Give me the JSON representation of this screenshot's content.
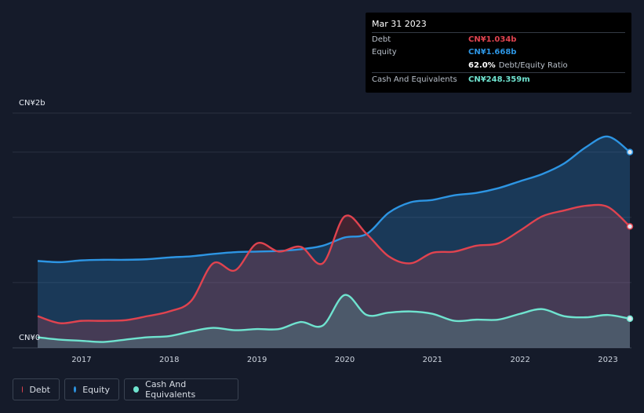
{
  "tooltip": {
    "date": "Mar 31 2023",
    "debt_label": "Debt",
    "debt_value": "CN¥1.034b",
    "equity_label": "Equity",
    "equity_value": "CN¥1.668b",
    "ratio_value": "62.0%",
    "ratio_label": "Debt/Equity Ratio",
    "cash_label": "Cash And Equivalents",
    "cash_value": "CN¥248.359m"
  },
  "colors": {
    "debt": "#e0434f",
    "equity": "#2d95e3",
    "cash": "#6fe3cf",
    "background": "#151b2a"
  },
  "legend": [
    {
      "label": "Debt",
      "color": "#e0434f"
    },
    {
      "label": "Equity",
      "color": "#2d95e3"
    },
    {
      "label": "Cash And Equivalents",
      "color": "#6fe3cf"
    }
  ],
  "chart_data": {
    "type": "area",
    "y_top_label": "CN¥2b",
    "y_bottom_label": "CN¥0",
    "ylim": [
      0,
      2.0
    ],
    "xlim": [
      2016.5,
      2023.25
    ],
    "xticks": [
      2017,
      2018,
      2019,
      2020,
      2021,
      2022,
      2023
    ],
    "xtick_labels": [
      "2017",
      "2018",
      "2019",
      "2020",
      "2021",
      "2022",
      "2023"
    ],
    "grid": true,
    "legend_position": "bottom-left",
    "series": [
      {
        "name": "Equity",
        "x": [
          2016.5,
          2016.75,
          2017.0,
          2017.25,
          2017.5,
          2017.75,
          2018.0,
          2018.25,
          2018.5,
          2018.75,
          2019.0,
          2019.25,
          2019.5,
          2019.75,
          2020.0,
          2020.25,
          2020.5,
          2020.75,
          2021.0,
          2021.25,
          2021.5,
          2021.75,
          2022.0,
          2022.25,
          2022.5,
          2022.75,
          2023.0,
          2023.25
        ],
        "values": [
          0.74,
          0.73,
          0.745,
          0.75,
          0.75,
          0.755,
          0.77,
          0.78,
          0.8,
          0.815,
          0.82,
          0.825,
          0.84,
          0.87,
          0.94,
          0.97,
          1.15,
          1.24,
          1.26,
          1.3,
          1.32,
          1.36,
          1.42,
          1.48,
          1.57,
          1.71,
          1.8,
          1.668
        ]
      },
      {
        "name": "Debt",
        "x": [
          2016.5,
          2016.75,
          2017.0,
          2017.25,
          2017.5,
          2017.75,
          2018.0,
          2018.25,
          2018.5,
          2018.75,
          2019.0,
          2019.25,
          2019.5,
          2019.75,
          2020.0,
          2020.25,
          2020.5,
          2020.75,
          2021.0,
          2021.25,
          2021.5,
          2021.75,
          2022.0,
          2022.25,
          2022.5,
          2022.75,
          2023.0,
          2023.25
        ],
        "values": [
          0.27,
          0.21,
          0.23,
          0.23,
          0.235,
          0.27,
          0.31,
          0.4,
          0.72,
          0.66,
          0.89,
          0.82,
          0.86,
          0.72,
          1.12,
          0.97,
          0.78,
          0.72,
          0.81,
          0.82,
          0.87,
          0.89,
          1.0,
          1.12,
          1.17,
          1.21,
          1.2,
          1.034
        ]
      },
      {
        "name": "Cash And Equivalents",
        "x": [
          2016.5,
          2016.75,
          2017.0,
          2017.25,
          2017.5,
          2017.75,
          2018.0,
          2018.25,
          2018.5,
          2018.75,
          2019.0,
          2019.25,
          2019.5,
          2019.75,
          2020.0,
          2020.25,
          2020.5,
          2020.75,
          2021.0,
          2021.25,
          2021.5,
          2021.75,
          2022.0,
          2022.25,
          2022.5,
          2022.75,
          2023.0,
          2023.25
        ],
        "values": [
          0.09,
          0.07,
          0.06,
          0.05,
          0.07,
          0.09,
          0.1,
          0.14,
          0.17,
          0.15,
          0.16,
          0.16,
          0.22,
          0.19,
          0.45,
          0.28,
          0.3,
          0.31,
          0.29,
          0.23,
          0.24,
          0.24,
          0.29,
          0.33,
          0.27,
          0.26,
          0.28,
          0.248
        ]
      }
    ]
  }
}
